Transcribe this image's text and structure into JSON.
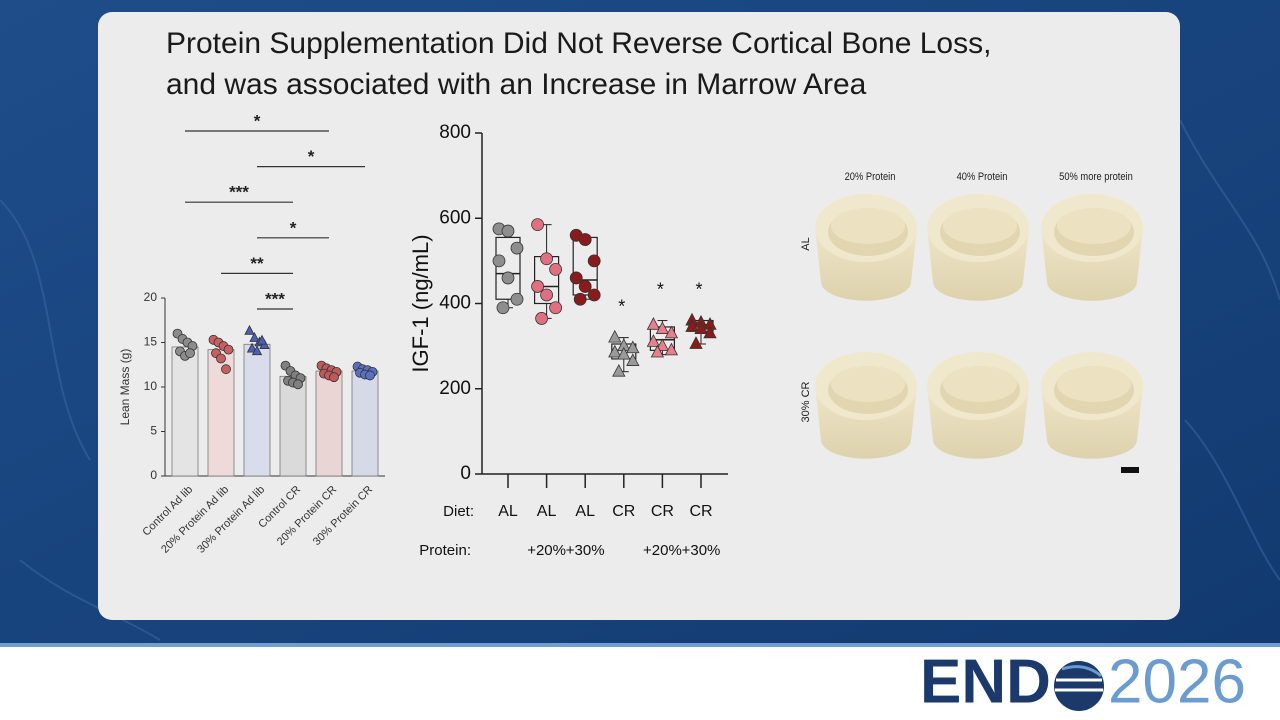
{
  "slide": {
    "title": [
      "Protein Supplementation Did Not Reverse Cortical Bone Loss,",
      "and was associated with an Increase in Marrow Area"
    ]
  },
  "chart_data": [
    {
      "type": "bar",
      "y_label": "Lean Mass (g)",
      "categories": [
        "Control Ad lib",
        "20% Protein Ad lib",
        "30% Protein Ad lib",
        "Control CR",
        "20% Protein CR",
        "30% Protein CR"
      ],
      "values": [
        14.5,
        14.2,
        14.8,
        11.2,
        11.8,
        11.8
      ],
      "colors": [
        "#e4e4e4",
        "#efdada",
        "#d9dcea",
        "#dadada",
        "#ead5d5",
        "#d6dae8"
      ],
      "point_colors": [
        "#8c8c8c",
        "#c86060",
        "#4a5fb5",
        "#808080",
        "#c05a5a",
        "#5a6fc0"
      ],
      "point_markers": [
        "circle",
        "circle",
        "triangle",
        "circle",
        "circle",
        "circle"
      ],
      "points": [
        [
          16.0,
          15.4,
          15.0,
          14.6,
          14.0,
          13.5,
          13.8
        ],
        [
          15.3,
          15.0,
          14.6,
          14.2,
          13.8,
          13.2,
          12.0
        ],
        [
          16.3,
          15.5,
          15.0,
          14.7,
          14.3,
          14.0,
          15.2
        ],
        [
          12.4,
          11.8,
          11.3,
          11.0,
          10.7,
          10.5,
          10.3
        ],
        [
          12.4,
          12.1,
          11.9,
          11.7,
          11.5,
          11.3,
          11.1
        ],
        [
          12.3,
          12.0,
          11.9,
          11.7,
          11.6,
          11.4,
          11.3
        ]
      ],
      "ylim": [
        0,
        20
      ],
      "yticks": [
        0,
        5,
        10,
        15,
        20
      ],
      "comparisons": [
        {
          "from": "Control Ad lib",
          "to": "20% Protein CR",
          "label": "*"
        },
        {
          "from": "30% Protein Ad lib",
          "to": "30% Protein CR",
          "label": "*"
        },
        {
          "from": "Control Ad lib",
          "to": "Control CR",
          "label": "***"
        },
        {
          "from": "30% Protein Ad lib",
          "to": "20% Protein CR",
          "label": "*"
        },
        {
          "from": "20% Protein Ad lib",
          "to": "Control CR",
          "label": "**"
        },
        {
          "from": "30% Protein Ad lib",
          "to": "Control CR",
          "label": "***"
        }
      ]
    },
    {
      "type": "box",
      "y_label": "IGF-1 (ng/mL)",
      "row_labels": [
        "Diet:",
        "Protein:"
      ],
      "categories": [
        "AL",
        "AL",
        "AL",
        "CR",
        "CR",
        "CR"
      ],
      "protein": [
        null,
        "+20%",
        "+30%",
        null,
        "+20%",
        "+30%"
      ],
      "min": [
        390,
        365,
        410,
        240,
        280,
        305
      ],
      "q1": [
        410,
        400,
        420,
        270,
        290,
        335
      ],
      "median": [
        470,
        440,
        455,
        290,
        315,
        350
      ],
      "q3": [
        555,
        510,
        555,
        305,
        345,
        360
      ],
      "max": [
        575,
        585,
        560,
        320,
        360,
        360
      ],
      "points": [
        [
          575,
          570,
          530,
          500,
          460,
          410,
          390
        ],
        [
          585,
          505,
          480,
          440,
          420,
          390,
          365
        ],
        [
          560,
          550,
          500,
          460,
          440,
          420,
          410
        ],
        [
          320,
          300,
          295,
          285,
          280,
          265,
          240
        ],
        [
          350,
          340,
          330,
          310,
          300,
          290,
          285
        ],
        [
          360,
          355,
          350,
          345,
          340,
          330,
          305
        ]
      ],
      "colors": [
        "#8e8e8e",
        "#e07080",
        "#8b1a1a",
        "#9a9a9a",
        "#e8808c",
        "#8b1a1a"
      ],
      "markers": [
        "circle",
        "circle",
        "circle",
        "triangle",
        "triangle",
        "triangle"
      ],
      "annotations": [
        null,
        null,
        null,
        "*",
        "*",
        "*"
      ],
      "ylim": [
        0,
        800
      ],
      "yticks": [
        0,
        200,
        400,
        600,
        800
      ]
    }
  ],
  "image_panel": {
    "columns": [
      "20% Protein",
      "40% Protein",
      "50% more protein"
    ],
    "rows": [
      "AL",
      "30% CR"
    ]
  },
  "logo": {
    "left": "END",
    "right": "2026"
  }
}
